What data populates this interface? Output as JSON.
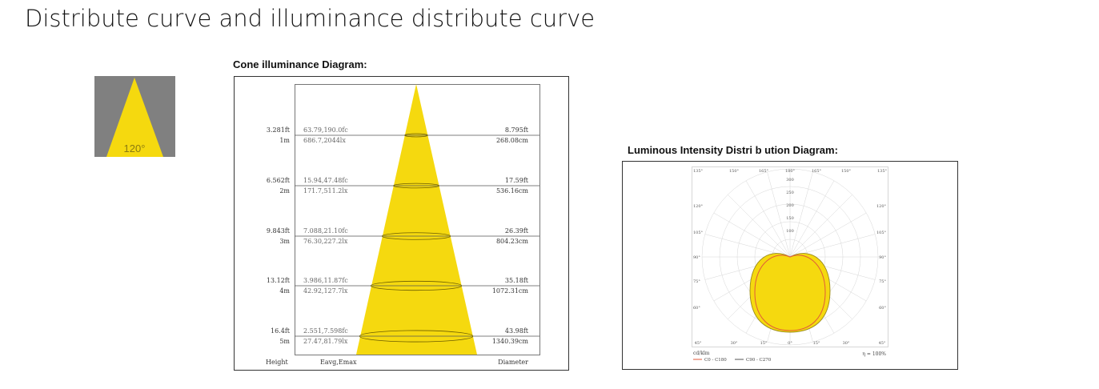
{
  "page": {
    "title": "Distribute curve and illuminance distribute curve"
  },
  "beam_icon": {
    "angle_label": "120°",
    "background_color": "#808080",
    "beam_color": "#f5d90f"
  },
  "cone": {
    "heading": "Cone illuminance Diagram:",
    "beam_color": "#f5d90f",
    "footer": {
      "height": "Height",
      "eavg": "Eavg,Emax",
      "diameter": "Diameter"
    },
    "rows": [
      {
        "height_ft": "3.281ft",
        "height_m": "1m",
        "fc": "63.79,190.0fc",
        "lx": "686.7,2044lx",
        "diam_ft": "8.795ft",
        "diam_cm": "268.08cm"
      },
      {
        "height_ft": "6.562ft",
        "height_m": "2m",
        "fc": "15.94,47.48fc",
        "lx": "171.7,511.2lx",
        "diam_ft": "17.59ft",
        "diam_cm": "536.16cm"
      },
      {
        "height_ft": "9.843ft",
        "height_m": "3m",
        "fc": "7.088,21.10fc",
        "lx": "76.30,227.2lx",
        "diam_ft": "26.39ft",
        "diam_cm": "804.23cm"
      },
      {
        "height_ft": "13.12ft",
        "height_m": "4m",
        "fc": "3.986,11.87fc",
        "lx": "42.92,127.7lx",
        "diam_ft": "35.18ft",
        "diam_cm": "1072.31cm"
      },
      {
        "height_ft": "16.4ft",
        "height_m": "5m",
        "fc": "2.551,7.598fc",
        "lx": "27.47,81.79lx",
        "diam_ft": "43.98ft",
        "diam_cm": "1340.39cm"
      }
    ]
  },
  "polar": {
    "heading": "Luminous Intensity Distri b ution Diagram:",
    "top_angles": [
      "135°",
      "150°",
      "165°",
      "180°",
      "165°",
      "150°",
      "135°"
    ],
    "bottom_angles": [
      "45°",
      "30°",
      "15°",
      "0°",
      "15°",
      "30°",
      "45°"
    ],
    "side_angles": [
      "120°",
      "105°",
      "90°",
      "75°",
      "60°"
    ],
    "radial_values": [
      "300",
      "250",
      "200",
      "150",
      "100"
    ],
    "unit": "cd/klm",
    "efficiency": "η = 100%",
    "legend": [
      {
        "label": "C0 - C180",
        "color": "#e05a3a"
      },
      {
        "label": "C90 - C270",
        "color": "#555555"
      }
    ],
    "fill_color": "#f5d90f"
  }
}
